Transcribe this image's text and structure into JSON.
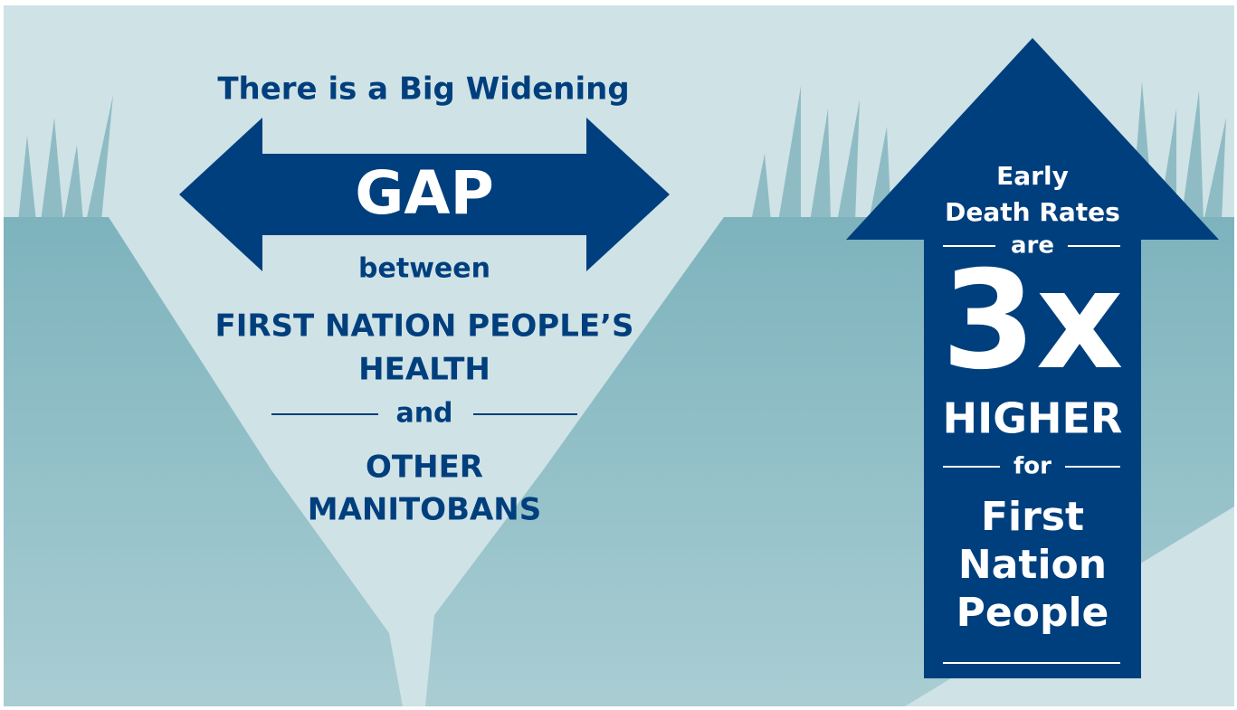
{
  "left": {
    "heading": "There is a Big Widening",
    "arrow_label": "GAP",
    "connector": "between",
    "group_a": [
      "FIRST NATION PEOPLE’S",
      "HEALTH"
    ],
    "joiner": "and",
    "group_b": [
      "OTHER",
      "MANITOBANS"
    ]
  },
  "right": {
    "subject": [
      "Early",
      "Death Rates"
    ],
    "verb": "are",
    "multiplier": "3x",
    "comparison": "HIGHER",
    "preposition": "for",
    "group": [
      "First",
      "Nation",
      "People"
    ]
  }
}
